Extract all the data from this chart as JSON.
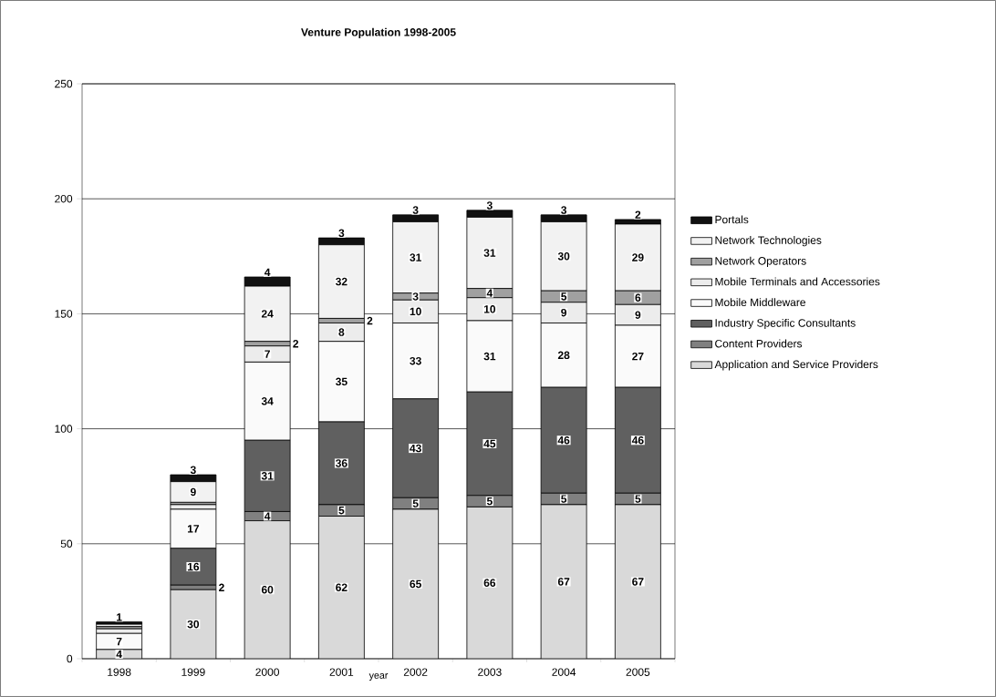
{
  "chart_data": {
    "type": "bar",
    "title": "Venture Population 1998-2005",
    "xlabel": "year",
    "categories": [
      "1998",
      "1999",
      "2000",
      "2001",
      "2002",
      "2003",
      "2004",
      "2005"
    ],
    "stacked": true,
    "ylim": [
      0,
      250
    ],
    "yticks": [
      0,
      50,
      100,
      150,
      200,
      250
    ],
    "grid": "y",
    "legend": "right",
    "series": [
      {
        "name": "Application and Service Providers",
        "color": "#d9d9d9",
        "values": [
          4,
          30,
          60,
          62,
          65,
          66,
          67,
          67
        ],
        "value_labels": [
          "4",
          "30",
          "60",
          "62",
          "65",
          "66",
          "67",
          "67"
        ]
      },
      {
        "name": "Content Providers",
        "color": "#808080",
        "values": [
          0,
          2,
          4,
          5,
          5,
          5,
          5,
          5
        ],
        "value_labels": [
          null,
          "2",
          "4",
          "5",
          "5",
          "5",
          "5",
          "5"
        ]
      },
      {
        "name": "Industry Specific Consultants",
        "color": "#606060",
        "values": [
          0,
          16,
          31,
          36,
          43,
          45,
          46,
          46
        ],
        "value_labels": [
          null,
          "16",
          "31",
          "36",
          "43",
          "45",
          "46",
          "46"
        ]
      },
      {
        "name": "Mobile Middleware",
        "color": "#fafafa",
        "values": [
          7,
          17,
          34,
          35,
          33,
          31,
          28,
          27
        ],
        "value_labels": [
          "7",
          "17",
          "34",
          "35",
          "33",
          "31",
          "28",
          "27"
        ]
      },
      {
        "name": "Mobile Terminals and Accessories",
        "color": "#ececec",
        "values": [
          2,
          2,
          7,
          8,
          10,
          10,
          9,
          9
        ],
        "value_labels": [
          null,
          null,
          "7",
          "8",
          "10",
          "10",
          "9",
          "9"
        ]
      },
      {
        "name": "Network Operators",
        "color": "#a0a0a0",
        "values": [
          1,
          1,
          2,
          2,
          3,
          4,
          5,
          6
        ],
        "value_labels": [
          null,
          null,
          "2",
          "2",
          "3",
          "4",
          "5",
          "6"
        ]
      },
      {
        "name": "Network Technologies",
        "color": "#f2f2f2",
        "values": [
          1,
          9,
          24,
          32,
          31,
          31,
          30,
          29
        ],
        "value_labels": [
          null,
          "9",
          "24",
          "32",
          "31",
          "31",
          "30",
          "29"
        ]
      },
      {
        "name": "Portals",
        "color": "#111111",
        "values": [
          1,
          3,
          4,
          3,
          3,
          3,
          3,
          2
        ],
        "value_labels": [
          "1",
          "3",
          "4",
          "3",
          "3",
          "3",
          "3",
          "2"
        ]
      }
    ]
  }
}
